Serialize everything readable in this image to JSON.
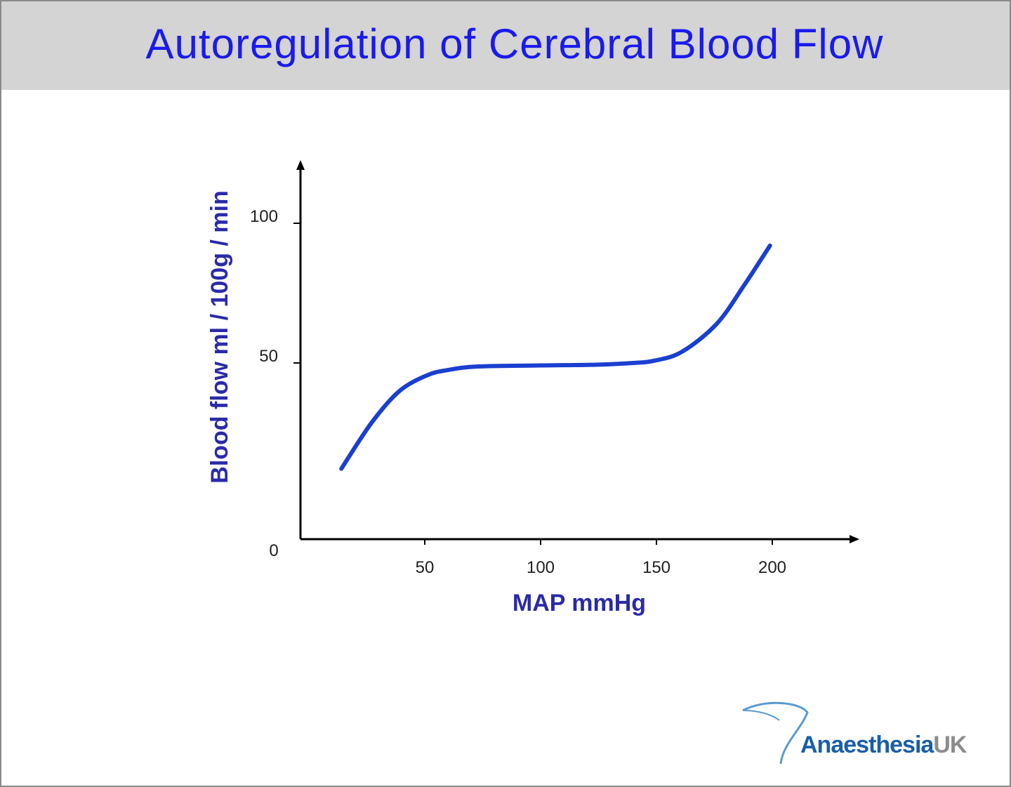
{
  "title": "Autoregulation of Cerebral Blood Flow",
  "chart_data": {
    "type": "line",
    "title": "Autoregulation of Cerebral Blood Flow",
    "xlabel": "MAP  mmHg",
    "ylabel": "Blood flow ml / 100g / min",
    "x_ticks": [
      "50",
      "100",
      "150",
      "200"
    ],
    "y_ticks": [
      "0",
      "50",
      "100"
    ],
    "xlim": [
      0,
      235
    ],
    "ylim": [
      0,
      120
    ],
    "grid": false,
    "series": [
      {
        "color": "#1a3fd0",
        "x": [
          14,
          27,
          39,
          51,
          60,
          73,
          100,
          124,
          140,
          149,
          161,
          176,
          188,
          199
        ],
        "y": [
          20,
          33,
          42,
          46.5,
          48,
          49,
          49.3,
          49.5,
          50,
          50.8,
          54,
          64,
          78,
          92
        ]
      }
    ]
  },
  "logo": {
    "part1": "Anaesthesia",
    "part2": "UK"
  }
}
